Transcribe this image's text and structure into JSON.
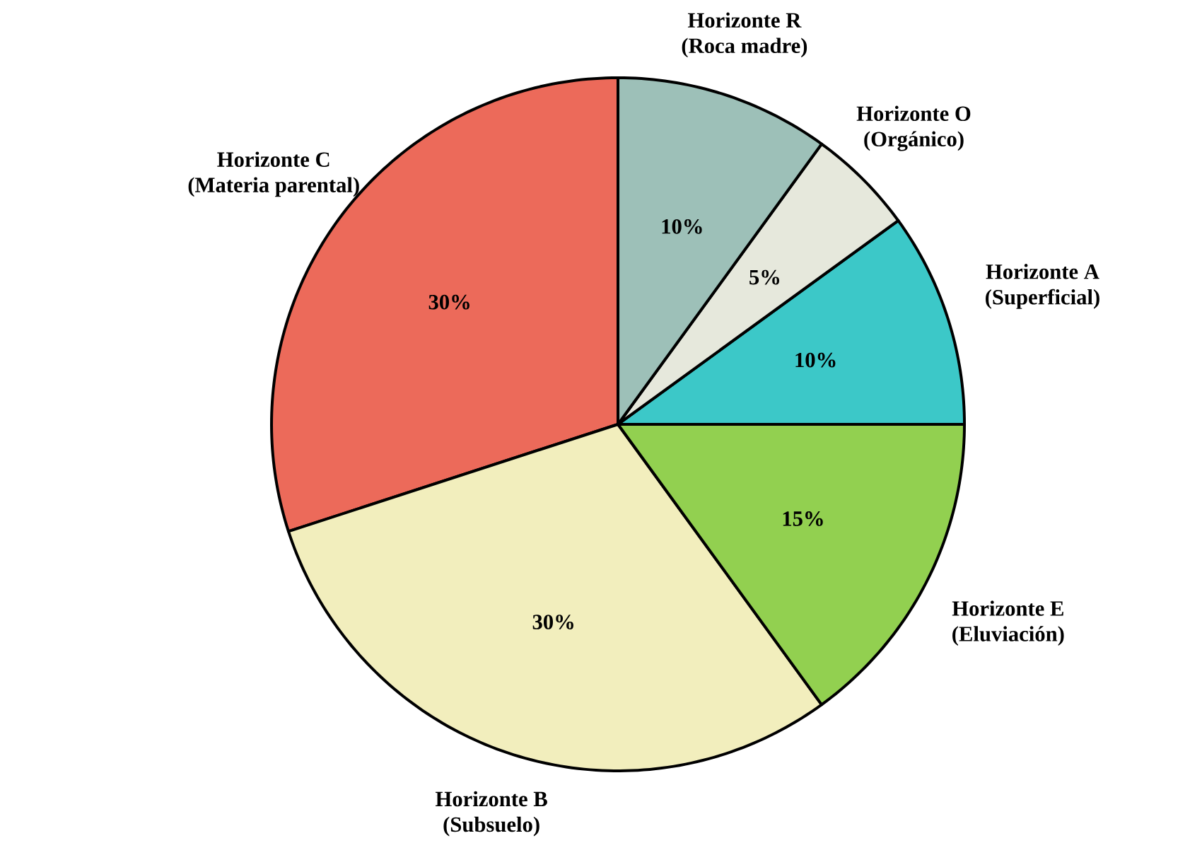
{
  "chart_data": {
    "type": "pie",
    "categories": [
      "Horizonte A (Superficial)",
      "Horizonte O (Orgánico)",
      "Horizonte R (Roca madre)",
      "Horizonte C (Materia parental)",
      "Horizonte B (Subsuelo)",
      "Horizonte E (Eluviación)"
    ],
    "values": [
      10,
      5,
      10,
      30,
      30,
      15
    ],
    "value_labels": [
      "10%",
      "5%",
      "10%",
      "30%",
      "30%",
      "15%"
    ],
    "colors": [
      "#3cc8c8",
      "#e6e8dc",
      "#9dc0b8",
      "#ec6a5a",
      "#f2eebd",
      "#92d050"
    ]
  }
}
